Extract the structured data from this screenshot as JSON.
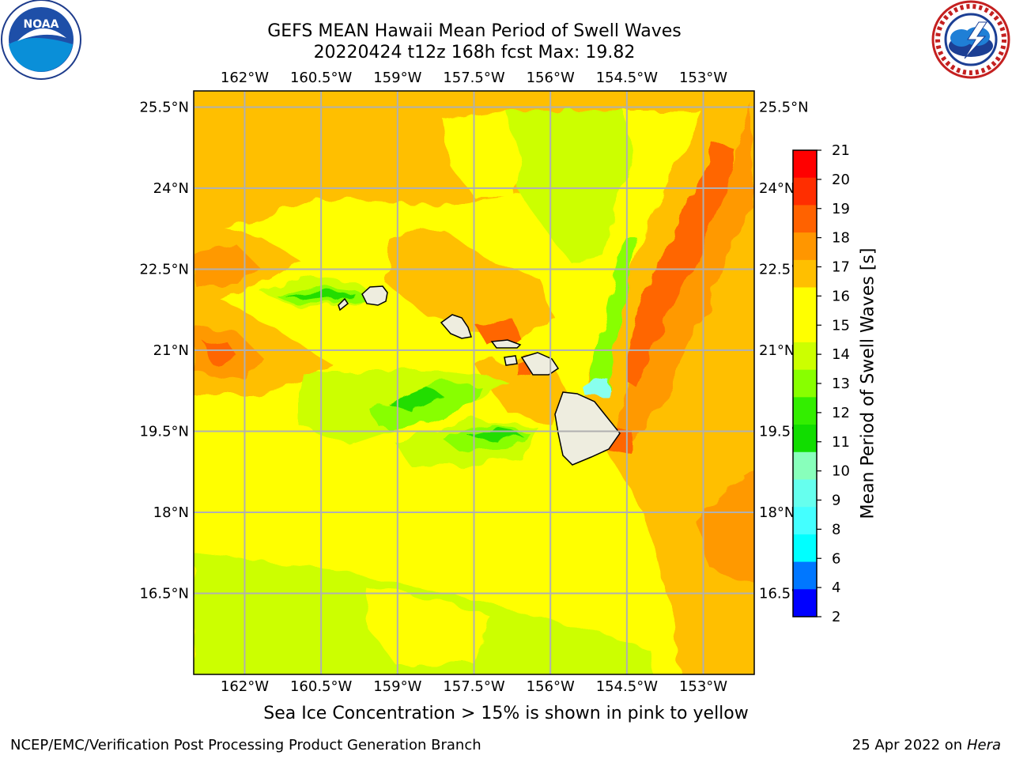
{
  "title": {
    "line1": "GEFS MEAN Hawaii Mean Period of Swell Waves",
    "line2": "20220424 t12z 168h fcst   Max: 19.82"
  },
  "map": {
    "lon_range": [
      -163,
      -152
    ],
    "lat_range": [
      15,
      25.8
    ],
    "lon_ticks": [
      {
        "value": -162,
        "label": "162°W"
      },
      {
        "value": -160.5,
        "label": "160.5°W"
      },
      {
        "value": -159,
        "label": "159°W"
      },
      {
        "value": -157.5,
        "label": "157.5°W"
      },
      {
        "value": -156,
        "label": "156°W"
      },
      {
        "value": -154.5,
        "label": "154.5°W"
      },
      {
        "value": -153,
        "label": "153°W"
      }
    ],
    "lat_ticks": [
      {
        "value": 25.5,
        "label": "25.5°N"
      },
      {
        "value": 24,
        "label": "24°N"
      },
      {
        "value": 22.5,
        "label": "22.5°N"
      },
      {
        "value": 21,
        "label": "21°N"
      },
      {
        "value": 19.5,
        "label": "19.5°N"
      },
      {
        "value": 18,
        "label": "18°N"
      },
      {
        "value": 16.5,
        "label": "16.5°N"
      }
    ],
    "colors": {
      "base": "#f6d800",
      "orange_light": "#ffbf00",
      "orange": "#ff9900",
      "orange_dark": "#ff6600",
      "red": "#ff2200",
      "yellow": "#ffff00",
      "lime": "#ccff00",
      "green_light": "#88ff00",
      "green": "#22dd00",
      "cyan": "#00ffff",
      "land": "#eeeddf",
      "grid": "#b0b0b0"
    }
  },
  "colorbar": {
    "label": "Mean Period of Swell Waves [s]",
    "ticks": [
      "21",
      "20",
      "19",
      "18",
      "17",
      "16",
      "15",
      "14",
      "13",
      "12",
      "11",
      "10",
      "9",
      "8",
      "6",
      "4",
      "2"
    ],
    "bands": [
      "#ff0000",
      "#ff2e00",
      "#ff6200",
      "#ff9600",
      "#ffbf00",
      "#ffff00",
      "#ffff00",
      "#ccff00",
      "#88ff00",
      "#33ee00",
      "#11dd00",
      "#88ffbb",
      "#66ffee",
      "#44ffff",
      "#00ffff",
      "#0077ff",
      "#0000ff"
    ]
  },
  "caption": "Sea Ice Concentration > 15% is shown in pink to yellow",
  "footer": {
    "left": "NCEP/EMC/Verification Post Processing Product Generation Branch",
    "right_date": "25 Apr 2022 on ",
    "right_machine": "Hera"
  }
}
